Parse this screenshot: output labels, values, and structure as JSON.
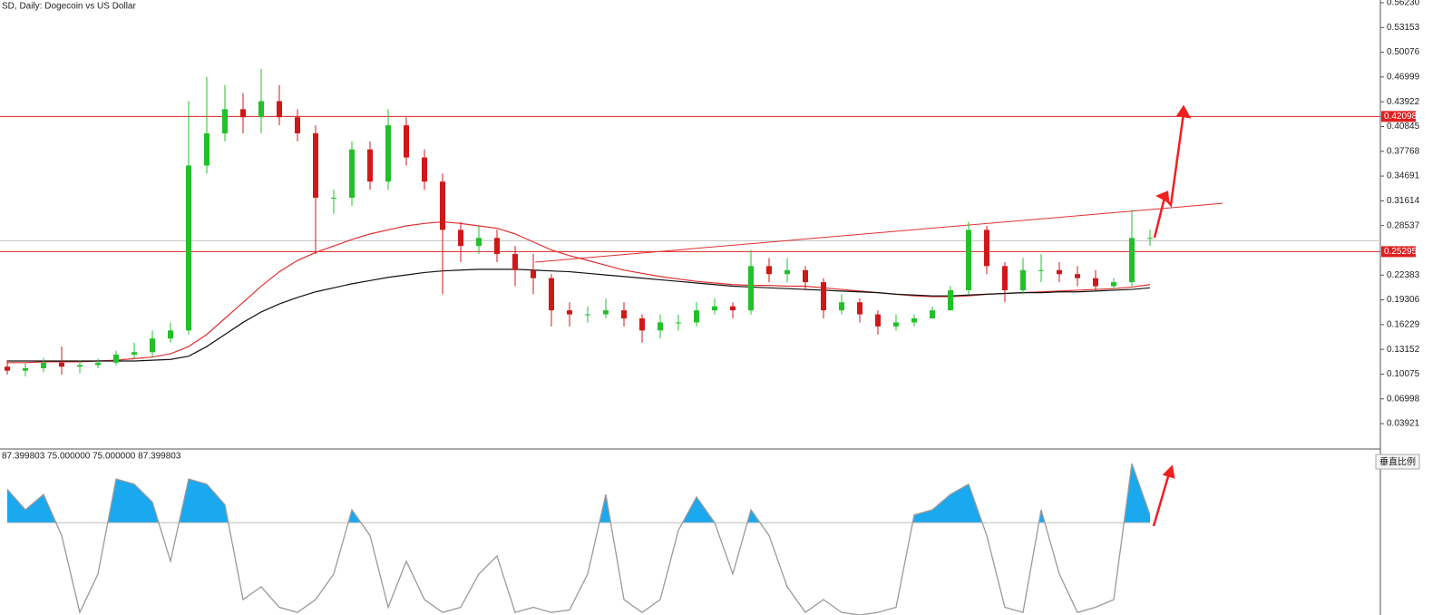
{
  "chart_data": [
    {
      "type": "candlestick",
      "title": "SD, Daily:  Dogecoin vs US Dollar",
      "open": [
        0.11,
        0.105,
        0.108,
        0.115,
        0.11,
        0.112,
        0.115,
        0.125,
        0.128,
        0.145,
        0.155,
        0.36,
        0.4,
        0.43,
        0.42,
        0.44,
        0.42,
        0.4,
        0.32,
        0.32,
        0.38,
        0.34,
        0.41,
        0.37,
        0.34,
        0.28,
        0.26,
        0.27,
        0.25,
        0.23,
        0.22,
        0.18,
        0.175,
        0.175,
        0.18,
        0.17,
        0.155,
        0.165,
        0.165,
        0.18,
        0.185,
        0.18,
        0.235,
        0.225,
        0.23,
        0.215,
        0.18,
        0.19,
        0.175,
        0.16,
        0.165,
        0.17,
        0.18,
        0.205,
        0.28,
        0.235,
        0.205,
        0.23,
        0.23,
        0.225,
        0.22,
        0.21,
        0.215,
        0.27
      ],
      "high": [
        0.118,
        0.114,
        0.121,
        0.135,
        0.118,
        0.12,
        0.13,
        0.14,
        0.155,
        0.165,
        0.44,
        0.47,
        0.46,
        0.45,
        0.48,
        0.46,
        0.43,
        0.41,
        0.33,
        0.39,
        0.39,
        0.43,
        0.42,
        0.38,
        0.35,
        0.29,
        0.285,
        0.28,
        0.26,
        0.25,
        0.225,
        0.19,
        0.185,
        0.195,
        0.19,
        0.175,
        0.175,
        0.175,
        0.19,
        0.195,
        0.19,
        0.255,
        0.245,
        0.245,
        0.235,
        0.22,
        0.2,
        0.195,
        0.18,
        0.175,
        0.175,
        0.185,
        0.21,
        0.29,
        0.285,
        0.24,
        0.245,
        0.25,
        0.24,
        0.235,
        0.23,
        0.22,
        0.305,
        0.28
      ],
      "low": [
        0.1,
        0.098,
        0.103,
        0.1,
        0.102,
        0.108,
        0.112,
        0.12,
        0.122,
        0.14,
        0.15,
        0.35,
        0.39,
        0.4,
        0.4,
        0.41,
        0.39,
        0.25,
        0.3,
        0.31,
        0.33,
        0.33,
        0.36,
        0.33,
        0.2,
        0.24,
        0.25,
        0.24,
        0.21,
        0.2,
        0.16,
        0.16,
        0.165,
        0.17,
        0.16,
        0.14,
        0.145,
        0.155,
        0.16,
        0.175,
        0.17,
        0.175,
        0.215,
        0.215,
        0.205,
        0.17,
        0.175,
        0.165,
        0.15,
        0.155,
        0.16,
        0.17,
        0.18,
        0.2,
        0.225,
        0.19,
        0.2,
        0.215,
        0.215,
        0.21,
        0.205,
        0.205,
        0.21,
        0.26
      ],
      "close": [
        0.105,
        0.108,
        0.115,
        0.11,
        0.112,
        0.115,
        0.125,
        0.128,
        0.145,
        0.155,
        0.36,
        0.4,
        0.43,
        0.42,
        0.44,
        0.42,
        0.4,
        0.32,
        0.32,
        0.38,
        0.34,
        0.41,
        0.37,
        0.34,
        0.28,
        0.26,
        0.27,
        0.25,
        0.23,
        0.22,
        0.18,
        0.175,
        0.175,
        0.18,
        0.17,
        0.155,
        0.165,
        0.165,
        0.18,
        0.185,
        0.18,
        0.235,
        0.225,
        0.23,
        0.215,
        0.18,
        0.19,
        0.175,
        0.16,
        0.165,
        0.17,
        0.18,
        0.205,
        0.28,
        0.235,
        0.205,
        0.23,
        0.23,
        0.225,
        0.22,
        0.21,
        0.215,
        0.27,
        0.27
      ],
      "up_color": "#22c02a",
      "down_color": "#d01818",
      "ylim": [
        0.0088,
        0.5657
      ],
      "yticks": [
        {
          "value": 0.5623,
          "label": "0.56230"
        },
        0.53153,
        0.50076,
        0.46999,
        0.43922,
        0.40845,
        0.37768,
        0.34691,
        0.31614,
        0.28537,
        0.22383,
        0.19306,
        0.16229,
        0.13152,
        0.10075,
        0.06998,
        0.03921
      ],
      "moving_averages": [
        {
          "color": "#e03030",
          "values": [
            0.115,
            0.115,
            0.116,
            0.116,
            0.116,
            0.117,
            0.118,
            0.12,
            0.122,
            0.126,
            0.135,
            0.15,
            0.17,
            0.19,
            0.21,
            0.228,
            0.242,
            0.252,
            0.26,
            0.268,
            0.275,
            0.28,
            0.285,
            0.288,
            0.29,
            0.288,
            0.285,
            0.282,
            0.275,
            0.265,
            0.255,
            0.248,
            0.242,
            0.236,
            0.23,
            0.226,
            0.222,
            0.219,
            0.216,
            0.214,
            0.212,
            0.211,
            0.211,
            0.21,
            0.21,
            0.208,
            0.206,
            0.204,
            0.202,
            0.2,
            0.198,
            0.197,
            0.197,
            0.198,
            0.2,
            0.201,
            0.202,
            0.203,
            0.204,
            0.205,
            0.206,
            0.207,
            0.209,
            0.212
          ]
        },
        {
          "color": "#111111",
          "values": [
            0.117,
            0.117,
            0.117,
            0.117,
            0.117,
            0.117,
            0.117,
            0.117,
            0.118,
            0.119,
            0.123,
            0.135,
            0.15,
            0.165,
            0.178,
            0.188,
            0.196,
            0.203,
            0.208,
            0.213,
            0.217,
            0.221,
            0.224,
            0.227,
            0.229,
            0.23,
            0.231,
            0.231,
            0.231,
            0.23,
            0.229,
            0.228,
            0.226,
            0.224,
            0.222,
            0.22,
            0.218,
            0.216,
            0.214,
            0.212,
            0.21,
            0.209,
            0.208,
            0.207,
            0.206,
            0.205,
            0.204,
            0.203,
            0.202,
            0.2,
            0.199,
            0.198,
            0.198,
            0.199,
            0.2,
            0.201,
            0.202,
            0.202,
            0.203,
            0.203,
            0.204,
            0.205,
            0.206,
            0.208
          ]
        }
      ],
      "hlines": [
        {
          "value": 0.42098,
          "color": "#e02020"
        },
        {
          "value": 0.25295,
          "color": "#e02020"
        }
      ],
      "price_line": {
        "value": 0.2664,
        "color": "#c8c8c8"
      },
      "trendline": {
        "x": [
          29.1,
          67
        ],
        "y": [
          0.2399,
          0.313
        ],
        "color": "#e03030"
      }
    },
    {
      "type": "line",
      "title": "87.399803 75.000000 75.000000 87.399803",
      "values": [
        88,
        80,
        86,
        70,
        40,
        55,
        92,
        90,
        83,
        60,
        92,
        90,
        82,
        45,
        50,
        42,
        40,
        45,
        55,
        80,
        70,
        42,
        60,
        45,
        40,
        42,
        55,
        62,
        40,
        42,
        40,
        41,
        55,
        86,
        45,
        40,
        45,
        72,
        85,
        75,
        55,
        80,
        70,
        50,
        40,
        45,
        40,
        39,
        40,
        42,
        78,
        80,
        86,
        90,
        70,
        42,
        40,
        80,
        55,
        40,
        42,
        45,
        98,
        78
      ],
      "color": "#9a9a9a",
      "fill_color": "#1aa8ee",
      "level": 75,
      "ylim": [
        39,
        103
      ]
    }
  ],
  "ui": {
    "button": "垂直比例"
  }
}
